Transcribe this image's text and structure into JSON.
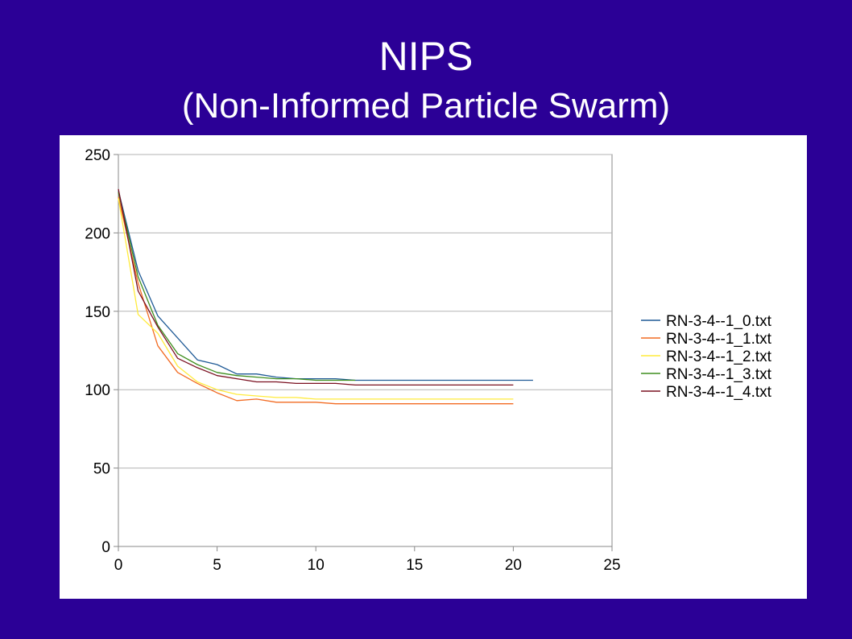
{
  "slide": {
    "title_line1": "NIPS",
    "title_line2": "(Non-Informed Particle Swarm)",
    "background_color": "#2B0096"
  },
  "chart_data": {
    "type": "line",
    "title": "",
    "xlabel": "",
    "ylabel": "",
    "xlim": [
      0,
      25
    ],
    "ylim": [
      0,
      250
    ],
    "x_ticks": [
      0,
      5,
      10,
      15,
      20,
      25
    ],
    "y_ticks": [
      0,
      50,
      100,
      150,
      200,
      250
    ],
    "grid": "horizontal",
    "legend_position": "right",
    "series": [
      {
        "name": "RN-3-4--1_0.txt",
        "color": "#1F5A96",
        "x": [
          0,
          1,
          2,
          3,
          4,
          5,
          6,
          7,
          8,
          9,
          10,
          11,
          12,
          13,
          14,
          15,
          16,
          17,
          18,
          19,
          20,
          21
        ],
        "y": [
          227,
          176,
          147,
          133,
          119,
          116,
          110,
          110,
          108,
          107,
          107,
          107,
          106,
          106,
          106,
          106,
          106,
          106,
          106,
          106,
          106,
          106
        ]
      },
      {
        "name": "RN-3-4--1_1.txt",
        "color": "#F26B22",
        "x": [
          0,
          1,
          2,
          3,
          4,
          5,
          6,
          7,
          8,
          9,
          10,
          11,
          12,
          13,
          14,
          15,
          16,
          17,
          18,
          19,
          20
        ],
        "y": [
          223,
          168,
          128,
          111,
          104,
          98,
          93,
          94,
          92,
          92,
          92,
          91,
          91,
          91,
          91,
          91,
          91,
          91,
          91,
          91,
          91
        ]
      },
      {
        "name": "RN-3-4--1_2.txt",
        "color": "#FFEB3B",
        "x": [
          0,
          1,
          2,
          3,
          4,
          5,
          6,
          7,
          8,
          9,
          10,
          11,
          12,
          13,
          14,
          15,
          16,
          17,
          18,
          19,
          20
        ],
        "y": [
          222,
          148,
          136,
          115,
          105,
          100,
          97,
          96,
          95,
          95,
          94,
          94,
          94,
          94,
          94,
          94,
          94,
          94,
          94,
          94,
          94
        ]
      },
      {
        "name": "RN-3-4--1_3.txt",
        "color": "#3E8E1E",
        "x": [
          0,
          1,
          2,
          3,
          4,
          5,
          6,
          7,
          8,
          9,
          10,
          11,
          12
        ],
        "y": [
          226,
          172,
          141,
          123,
          116,
          111,
          109,
          108,
          107,
          107,
          106,
          106,
          106
        ]
      },
      {
        "name": "RN-3-4--1_4.txt",
        "color": "#7A1020",
        "x": [
          0,
          1,
          2,
          3,
          4,
          5,
          6,
          7,
          8,
          9,
          10,
          11,
          12,
          13,
          14,
          15,
          16,
          17,
          18,
          19,
          20
        ],
        "y": [
          228,
          163,
          140,
          120,
          114,
          109,
          107,
          105,
          105,
          104,
          104,
          104,
          103,
          103,
          103,
          103,
          103,
          103,
          103,
          103,
          103
        ]
      }
    ]
  }
}
